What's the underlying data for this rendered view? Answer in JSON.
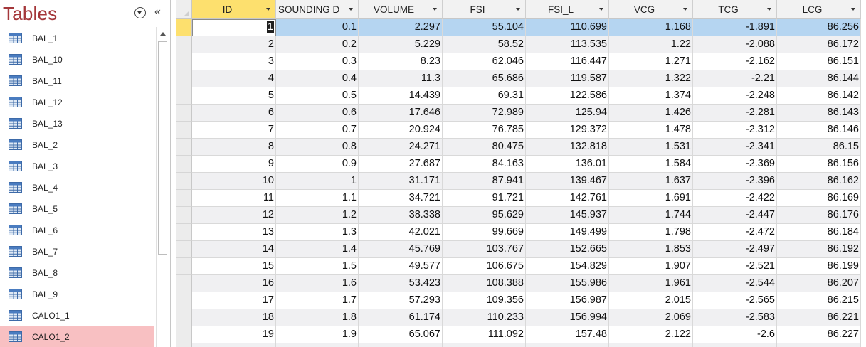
{
  "nav": {
    "title": "Tables",
    "items": [
      "BAL_1",
      "BAL_10",
      "BAL_11",
      "BAL_12",
      "BAL_13",
      "BAL_2",
      "BAL_3",
      "BAL_4",
      "BAL_5",
      "BAL_6",
      "BAL_7",
      "BAL_8",
      "BAL_9",
      "CALO1_1",
      "CALO1_2"
    ],
    "selected_item": "CALO1_2",
    "collapse_glyph": "«",
    "icons": {
      "item": "table-icon",
      "menu": "chevron-down-circle-icon",
      "collapse": "double-chevron-left-icon"
    }
  },
  "grid": {
    "columns": [
      "ID",
      "SOUNDING D",
      "VOLUME",
      "FSI",
      "FSI_L",
      "VCG",
      "TCG",
      "LCG"
    ],
    "rows": [
      [
        "1",
        "0.1",
        "2.297",
        "55.104",
        "110.699",
        "1.168",
        "-1.891",
        "86.256"
      ],
      [
        "2",
        "0.2",
        "5.229",
        "58.52",
        "113.535",
        "1.22",
        "-2.088",
        "86.172"
      ],
      [
        "3",
        "0.3",
        "8.23",
        "62.046",
        "116.447",
        "1.271",
        "-2.162",
        "86.151"
      ],
      [
        "4",
        "0.4",
        "11.3",
        "65.686",
        "119.587",
        "1.322",
        "-2.21",
        "86.144"
      ],
      [
        "5",
        "0.5",
        "14.439",
        "69.31",
        "122.586",
        "1.374",
        "-2.248",
        "86.142"
      ],
      [
        "6",
        "0.6",
        "17.646",
        "72.989",
        "125.94",
        "1.426",
        "-2.281",
        "86.143"
      ],
      [
        "7",
        "0.7",
        "20.924",
        "76.785",
        "129.372",
        "1.478",
        "-2.312",
        "86.146"
      ],
      [
        "8",
        "0.8",
        "24.271",
        "80.475",
        "132.818",
        "1.531",
        "-2.341",
        "86.15"
      ],
      [
        "9",
        "0.9",
        "27.687",
        "84.163",
        "136.01",
        "1.584",
        "-2.369",
        "86.156"
      ],
      [
        "10",
        "1",
        "31.171",
        "87.941",
        "139.467",
        "1.637",
        "-2.396",
        "86.162"
      ],
      [
        "11",
        "1.1",
        "34.721",
        "91.721",
        "142.761",
        "1.691",
        "-2.422",
        "86.169"
      ],
      [
        "12",
        "1.2",
        "38.338",
        "95.629",
        "145.937",
        "1.744",
        "-2.447",
        "86.176"
      ],
      [
        "13",
        "1.3",
        "42.021",
        "99.669",
        "149.499",
        "1.798",
        "-2.472",
        "86.184"
      ],
      [
        "14",
        "1.4",
        "45.769",
        "103.767",
        "152.665",
        "1.853",
        "-2.497",
        "86.192"
      ],
      [
        "15",
        "1.5",
        "49.577",
        "106.675",
        "154.829",
        "1.907",
        "-2.521",
        "86.199"
      ],
      [
        "16",
        "1.6",
        "53.423",
        "108.388",
        "155.986",
        "1.961",
        "-2.544",
        "86.207"
      ],
      [
        "17",
        "1.7",
        "57.293",
        "109.356",
        "156.987",
        "2.015",
        "-2.565",
        "86.215"
      ],
      [
        "18",
        "1.8",
        "61.174",
        "110.233",
        "156.994",
        "2.069",
        "-2.583",
        "86.221"
      ],
      [
        "19",
        "1.9",
        "65.067",
        "111.092",
        "157.48",
        "2.122",
        "-2.6",
        "86.227"
      ]
    ],
    "selected_row": 1,
    "active_column": "ID",
    "icons": {
      "sort": "dropdown-arrow-icon",
      "corner": "select-all-icon"
    },
    "colors": {
      "active_header": "#fde06e",
      "selected_row": "#b5d5f1",
      "alt_row": "#f0f0f2",
      "nav_selected": "#f8c0c2",
      "title": "#a4373a"
    }
  }
}
